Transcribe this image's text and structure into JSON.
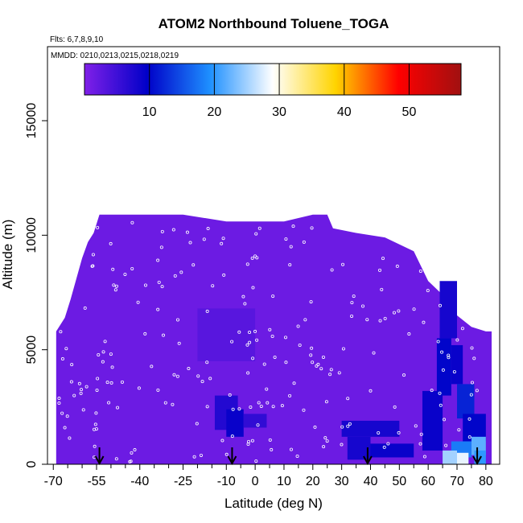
{
  "chart_data": {
    "type": "heatmap",
    "title": "ATOM2 Northbound Toluene_TOGA",
    "flights_text": "Flts: 6,7,8,9,10",
    "mmdd_text": "MMDD: 0210,0213,0215,0218,0219",
    "xlabel": "Latitude (deg N)",
    "ylabel": "Altitude (m)",
    "xlim": [
      -70,
      85
    ],
    "ylim": [
      0,
      18000
    ],
    "x_ticks": [
      -70,
      -55,
      -40,
      -25,
      -10,
      0,
      10,
      20,
      30,
      40,
      50,
      60,
      70,
      80
    ],
    "x_minor_ticks": [
      -65,
      -60,
      -50,
      -45,
      -35,
      -30,
      -20,
      -15,
      -5,
      5,
      15,
      25,
      35,
      45,
      55,
      65,
      75,
      85
    ],
    "y_ticks": [
      0,
      5000,
      10000,
      15000
    ],
    "colorbar": {
      "range": [
        0,
        58
      ],
      "ticks": [
        10,
        20,
        30,
        40,
        50
      ],
      "colors": [
        "#8020e8",
        "#0000c8",
        "#1e90ff",
        "#ffffff",
        "#ffd400",
        "#ff0000",
        "#a01010"
      ]
    },
    "profile_arrows_lat": [
      -54,
      -8,
      39,
      77
    ],
    "envelope": [
      [
        -69,
        5800
      ],
      [
        -66,
        6400
      ],
      [
        -64,
        7200
      ],
      [
        -62,
        8100
      ],
      [
        -60,
        9000
      ],
      [
        -58,
        9700
      ],
      [
        -56,
        10100
      ],
      [
        -54,
        10900
      ],
      [
        -25,
        10900
      ],
      [
        -10,
        10600
      ],
      [
        10,
        10600
      ],
      [
        20,
        10900
      ],
      [
        25,
        10900
      ],
      [
        27,
        10300
      ],
      [
        35,
        10100
      ],
      [
        45,
        9900
      ],
      [
        55,
        9300
      ],
      [
        60,
        8000
      ],
      [
        65,
        7400
      ],
      [
        70,
        6500
      ],
      [
        75,
        6000
      ],
      [
        80,
        5800
      ],
      [
        82,
        5800
      ]
    ],
    "cells": [
      {
        "lat": [
          -20,
          0
        ],
        "alt": [
          4500,
          6800
        ],
        "value": 3
      },
      {
        "lat": [
          -14,
          -6
        ],
        "alt": [
          1500,
          3000
        ],
        "value": 7
      },
      {
        "lat": [
          -10,
          -4
        ],
        "alt": [
          1200,
          2400
        ],
        "value": 9
      },
      {
        "lat": [
          -4,
          4
        ],
        "alt": [
          1600,
          2200
        ],
        "value": 6
      },
      {
        "lat": [
          30,
          50
        ],
        "alt": [
          1200,
          1900
        ],
        "value": 8
      },
      {
        "lat": [
          32,
          40
        ],
        "alt": [
          200,
          1200
        ],
        "value": 8
      },
      {
        "lat": [
          40,
          55
        ],
        "alt": [
          300,
          900
        ],
        "value": 9
      },
      {
        "lat": [
          58,
          65
        ],
        "alt": [
          600,
          3200
        ],
        "value": 9
      },
      {
        "lat": [
          63,
          68
        ],
        "alt": [
          3000,
          5500
        ],
        "value": 10
      },
      {
        "lat": [
          64,
          70
        ],
        "alt": [
          5500,
          8000
        ],
        "value": 8
      },
      {
        "lat": [
          68,
          72
        ],
        "alt": [
          3500,
          5200
        ],
        "value": 9
      },
      {
        "lat": [
          70,
          76
        ],
        "alt": [
          2000,
          3500
        ],
        "value": 12
      },
      {
        "lat": [
          72,
          80
        ],
        "alt": [
          1000,
          2200
        ],
        "value": 10
      },
      {
        "lat": [
          75,
          80
        ],
        "alt": [
          400,
          1200
        ],
        "value": 22
      },
      {
        "lat": [
          68,
          75
        ],
        "alt": [
          300,
          1000
        ],
        "value": 18
      },
      {
        "lat": [
          65,
          70
        ],
        "alt": [
          0,
          600
        ],
        "value": 25
      },
      {
        "lat": [
          70,
          74
        ],
        "alt": [
          0,
          500
        ],
        "value": 28
      },
      {
        "lat": [
          76,
          80
        ],
        "alt": [
          0,
          600
        ],
        "value": 20
      }
    ],
    "grid": false,
    "legend": "top (colorbar)"
  }
}
